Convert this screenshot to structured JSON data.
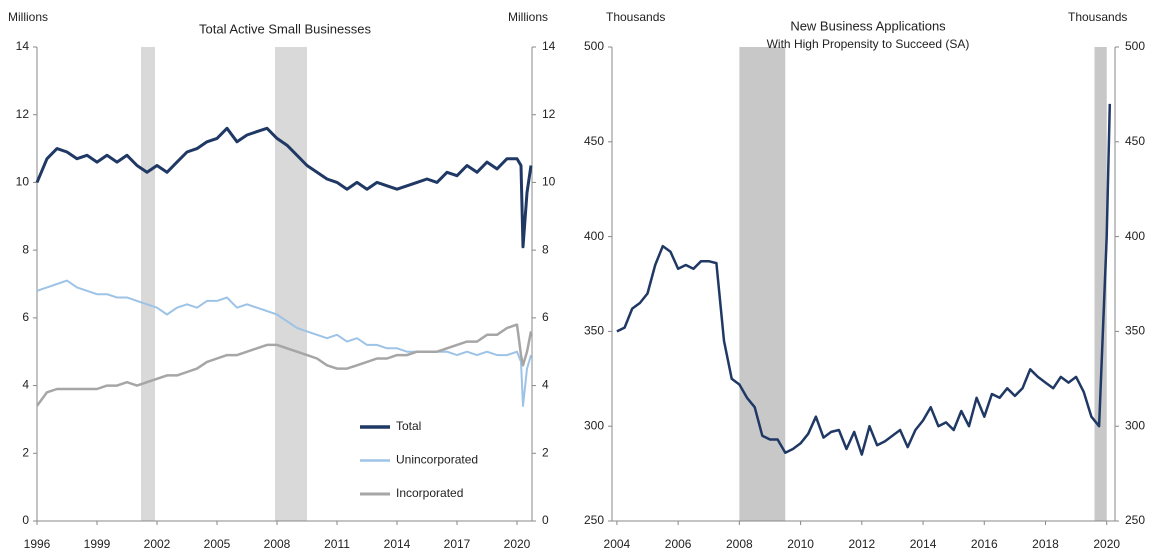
{
  "chart_data": [
    {
      "type": "line",
      "title": "Total Active Small Businesses",
      "ylabel": "Millions",
      "y2label": "Millions",
      "xlim": [
        1996,
        2020.75
      ],
      "xticks": [
        1996,
        1999,
        2002,
        2005,
        2008,
        2011,
        2014,
        2017,
        2020
      ],
      "ylim": [
        0,
        14
      ],
      "yticks": [
        0,
        2,
        4,
        6,
        8,
        10,
        12,
        14
      ],
      "y2lim": [
        0,
        14
      ],
      "y2ticks": [
        0,
        2,
        4,
        6,
        8,
        10,
        12,
        14
      ],
      "legend": "lower right",
      "shade_color": "#d9d9d9",
      "shaded_ranges": [
        [
          2001.2,
          2001.9
        ],
        [
          2007.9,
          2009.5
        ]
      ],
      "x": [
        1996,
        1996.5,
        1997,
        1997.5,
        1998,
        1998.5,
        1999,
        1999.5,
        2000,
        2000.5,
        2001,
        2001.5,
        2002,
        2002.5,
        2003,
        2003.5,
        2004,
        2004.5,
        2005,
        2005.5,
        2006,
        2006.5,
        2007,
        2007.5,
        2008,
        2008.5,
        2009,
        2009.5,
        2010,
        2010.5,
        2011,
        2011.5,
        2012,
        2012.5,
        2013,
        2013.5,
        2014,
        2014.5,
        2015,
        2015.5,
        2016,
        2016.5,
        2017,
        2017.5,
        2018,
        2018.5,
        2019,
        2019.5,
        2020,
        2020.2,
        2020.3,
        2020.5,
        2020.7
      ],
      "series": [
        {
          "name": "Total",
          "color": "#1f3864",
          "width": 3,
          "values": [
            10.0,
            10.7,
            11.0,
            10.9,
            10.7,
            10.8,
            10.6,
            10.8,
            10.6,
            10.8,
            10.5,
            10.3,
            10.5,
            10.3,
            10.6,
            10.9,
            11.0,
            11.2,
            11.3,
            11.6,
            11.2,
            11.4,
            11.5,
            11.6,
            11.3,
            11.1,
            10.8,
            10.5,
            10.3,
            10.1,
            10.0,
            9.8,
            10.0,
            9.8,
            10.0,
            9.9,
            9.8,
            9.9,
            10.0,
            10.1,
            10.0,
            10.3,
            10.2,
            10.5,
            10.3,
            10.6,
            10.4,
            10.7,
            10.7,
            10.5,
            8.1,
            9.7,
            10.5
          ]
        },
        {
          "name": "Unincorporated",
          "color": "#9dc3e6",
          "width": 2,
          "values": [
            6.8,
            6.9,
            7.0,
            7.1,
            6.9,
            6.8,
            6.7,
            6.7,
            6.6,
            6.6,
            6.5,
            6.4,
            6.3,
            6.1,
            6.3,
            6.4,
            6.3,
            6.5,
            6.5,
            6.6,
            6.3,
            6.4,
            6.3,
            6.2,
            6.1,
            5.9,
            5.7,
            5.6,
            5.5,
            5.4,
            5.5,
            5.3,
            5.4,
            5.2,
            5.2,
            5.1,
            5.1,
            5.0,
            5.0,
            5.0,
            5.0,
            5.0,
            4.9,
            5.0,
            4.9,
            5.0,
            4.9,
            4.9,
            5.0,
            4.7,
            3.4,
            4.5,
            4.9
          ]
        },
        {
          "name": "Incorporated",
          "color": "#a6a6a6",
          "width": 2.5,
          "values": [
            3.4,
            3.8,
            3.9,
            3.9,
            3.9,
            3.9,
            3.9,
            4.0,
            4.0,
            4.1,
            4.0,
            4.1,
            4.2,
            4.3,
            4.3,
            4.4,
            4.5,
            4.7,
            4.8,
            4.9,
            4.9,
            5.0,
            5.1,
            5.2,
            5.2,
            5.1,
            5.0,
            4.9,
            4.8,
            4.6,
            4.5,
            4.5,
            4.6,
            4.7,
            4.8,
            4.8,
            4.9,
            4.9,
            5.0,
            5.0,
            5.0,
            5.1,
            5.2,
            5.3,
            5.3,
            5.5,
            5.5,
            5.7,
            5.8,
            4.9,
            4.6,
            5.0,
            5.6
          ]
        }
      ]
    },
    {
      "type": "line",
      "title": "New Business Applications",
      "subtitle": "With High Propensity to Succeed (SA)",
      "ylabel": "Thousands",
      "y2label": "Thousands",
      "xlim": [
        2003.84,
        2020.27
      ],
      "xticks": [
        2004,
        2006,
        2008,
        2010,
        2012,
        2014,
        2016,
        2018,
        2020
      ],
      "ylim": [
        250,
        500
      ],
      "yticks": [
        250,
        300,
        350,
        400,
        450,
        500
      ],
      "y2lim": [
        250,
        500
      ],
      "y2ticks": [
        250,
        300,
        350,
        400,
        450,
        500
      ],
      "shade_color": "#c8c8c8",
      "shaded_ranges": [
        [
          2008.0,
          2009.5
        ],
        [
          2019.6,
          2020.0
        ]
      ],
      "x": [
        2004,
        2004.25,
        2004.5,
        2004.75,
        2005,
        2005.25,
        2005.5,
        2005.75,
        2006,
        2006.25,
        2006.5,
        2006.75,
        2007,
        2007.25,
        2007.5,
        2007.75,
        2008,
        2008.25,
        2008.5,
        2008.75,
        2009,
        2009.25,
        2009.5,
        2009.75,
        2010,
        2010.25,
        2010.5,
        2010.75,
        2011,
        2011.25,
        2011.5,
        2011.75,
        2012,
        2012.25,
        2012.5,
        2012.75,
        2013,
        2013.25,
        2013.5,
        2013.75,
        2014,
        2014.25,
        2014.5,
        2014.75,
        2015,
        2015.25,
        2015.5,
        2015.75,
        2016,
        2016.25,
        2016.5,
        2016.75,
        2017,
        2017.25,
        2017.5,
        2017.75,
        2018,
        2018.25,
        2018.5,
        2018.75,
        2019,
        2019.25,
        2019.5,
        2019.75,
        2020,
        2020.1
      ],
      "series": [
        {
          "name": "New Business Applications",
          "color": "#1f3864",
          "width": 2.5,
          "values": [
            350,
            352,
            362,
            365,
            370,
            385,
            395,
            392,
            383,
            385,
            383,
            387,
            387,
            386,
            345,
            325,
            322,
            315,
            310,
            295,
            293,
            293,
            286,
            288,
            291,
            296,
            305,
            294,
            297,
            298,
            288,
            297,
            285,
            300,
            290,
            292,
            295,
            298,
            289,
            298,
            303,
            310,
            300,
            302,
            298,
            308,
            300,
            315,
            305,
            317,
            315,
            320,
            316,
            320,
            330,
            326,
            323,
            320,
            326,
            323,
            326,
            318,
            305,
            300,
            400,
            470
          ]
        }
      ]
    }
  ]
}
